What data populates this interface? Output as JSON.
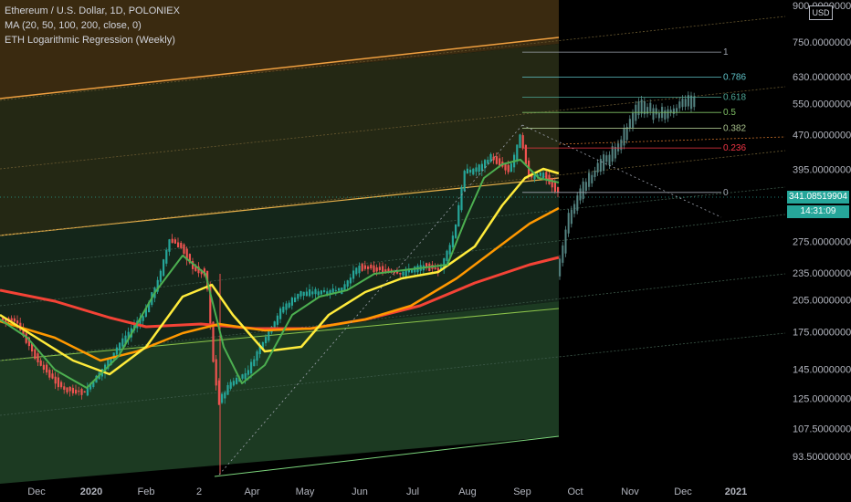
{
  "legend": {
    "title": "Ethereum / U.S. Dollar, 1D, POLONIEX",
    "ma": "MA (20, 50, 100, 200, close, 0)",
    "regression": "ETH Logarithmic Regression (Weekly)"
  },
  "currency": "USD",
  "last_price": "341.08519904",
  "countdown": "14:31:09",
  "chart_data": {
    "type": "candlestick",
    "yscale": "log",
    "ylim": [
      86,
      900
    ],
    "y_ticks": [
      "900.00000000",
      "750.00000000",
      "630.00000000",
      "550.00000000",
      "470.00000000",
      "395.00000000",
      "275.00000000",
      "235.00000000",
      "205.00000000",
      "175.00000000",
      "145.00000000",
      "125.00000000",
      "107.50000000",
      "93.50000000"
    ],
    "y_tick_values": [
      900,
      750,
      630,
      550,
      470,
      395,
      275,
      235,
      205,
      175,
      145,
      125,
      107.5,
      93.5
    ],
    "x_ticks": [
      "Dec",
      "2020",
      "Feb",
      "2",
      "Apr",
      "May",
      "Jun",
      "Jul",
      "Aug",
      "Sep",
      "Oct",
      "Nov",
      "Dec",
      "2021"
    ],
    "x_tick_bold": [
      false,
      true,
      false,
      false,
      false,
      false,
      false,
      false,
      false,
      false,
      false,
      false,
      false,
      true
    ],
    "fib_levels": [
      {
        "label": "1",
        "value": 712,
        "color": "#9ea3ae"
      },
      {
        "label": "0.786",
        "value": 628,
        "color": "#5fc3c8"
      },
      {
        "label": "0.618",
        "value": 568,
        "color": "#4ca695"
      },
      {
        "label": "0.5",
        "value": 526,
        "color": "#7fbf65"
      },
      {
        "label": "0.382",
        "value": 486,
        "color": "#a7c08b"
      },
      {
        "label": "0.236",
        "value": 440,
        "color": "#f23645"
      },
      {
        "label": "0",
        "value": 352,
        "color": "#9ea3ae"
      }
    ],
    "colors": {
      "up": "#26a69a",
      "down": "#ef5350",
      "ma20": "#4caf50",
      "ma50": "#ffeb3b",
      "ma100": "#ff9800",
      "ma200": "#f44336",
      "projection": "#5a8c8a"
    }
  }
}
